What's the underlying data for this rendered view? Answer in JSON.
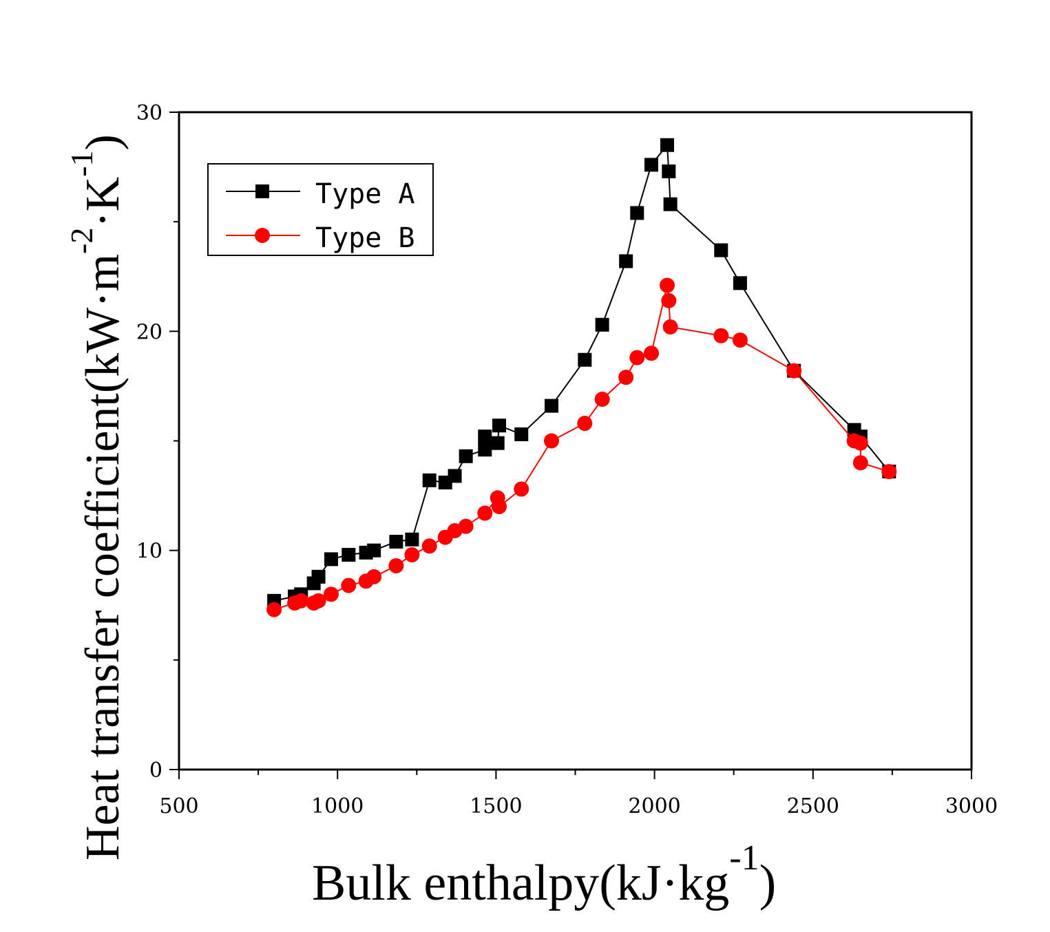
{
  "chart_data": {
    "type": "line",
    "title": "",
    "xlabel": "Bulk enthalpy(kJ·kg",
    "xlabel_sup": "-1",
    "xlabel_close": ")",
    "ylabel": "Heat transfer coefficient(kW·m",
    "ylabel_sup1": "-2",
    "ylabel_mid": "·K",
    "ylabel_sup2": "-1",
    "ylabel_close": ")",
    "xlim": [
      500,
      3000
    ],
    "ylim": [
      0,
      30
    ],
    "x_ticks": [
      500,
      1000,
      1500,
      2000,
      2500,
      3000
    ],
    "y_ticks": [
      0,
      10,
      20,
      30
    ],
    "x_minor": 250,
    "y_minor": 5,
    "grid": false,
    "legend_position": "top-left",
    "series": [
      {
        "name": "Type A",
        "color": "#000000",
        "marker": "square",
        "x": [
          800,
          865,
          885,
          925,
          940,
          980,
          1035,
          1090,
          1115,
          1185,
          1235,
          1290,
          1340,
          1370,
          1405,
          1465,
          1465,
          1505,
          1510,
          1580,
          1675,
          1780,
          1835,
          1910,
          1945,
          1990,
          2040,
          2045,
          2050,
          2210,
          2270,
          2440,
          2630,
          2650,
          2740
        ],
        "y": [
          7.7,
          7.9,
          8.0,
          8.5,
          8.8,
          9.6,
          9.8,
          9.9,
          10.0,
          10.4,
          10.5,
          13.2,
          13.1,
          13.4,
          14.3,
          14.6,
          15.2,
          14.9,
          15.7,
          15.3,
          16.6,
          18.7,
          20.3,
          23.2,
          25.4,
          27.6,
          28.5,
          27.3,
          25.8,
          23.7,
          22.2,
          18.2,
          15.5,
          15.2,
          13.6
        ]
      },
      {
        "name": "Type B",
        "color": "#ff0000",
        "marker": "circle",
        "x": [
          800,
          865,
          885,
          925,
          940,
          980,
          1035,
          1090,
          1115,
          1185,
          1235,
          1290,
          1340,
          1370,
          1405,
          1465,
          1505,
          1510,
          1580,
          1675,
          1780,
          1835,
          1910,
          1945,
          1990,
          2040,
          2045,
          2050,
          2210,
          2270,
          2440,
          2630,
          2650,
          2650,
          2740
        ],
        "y": [
          7.3,
          7.6,
          7.7,
          7.6,
          7.7,
          8.0,
          8.4,
          8.6,
          8.8,
          9.3,
          9.8,
          10.2,
          10.6,
          10.9,
          11.1,
          11.7,
          12.4,
          12.0,
          12.8,
          15.0,
          15.8,
          16.9,
          17.9,
          18.8,
          19.0,
          22.1,
          21.4,
          20.2,
          19.8,
          19.6,
          18.2,
          15.0,
          14.9,
          14.0,
          13.6
        ]
      }
    ]
  }
}
